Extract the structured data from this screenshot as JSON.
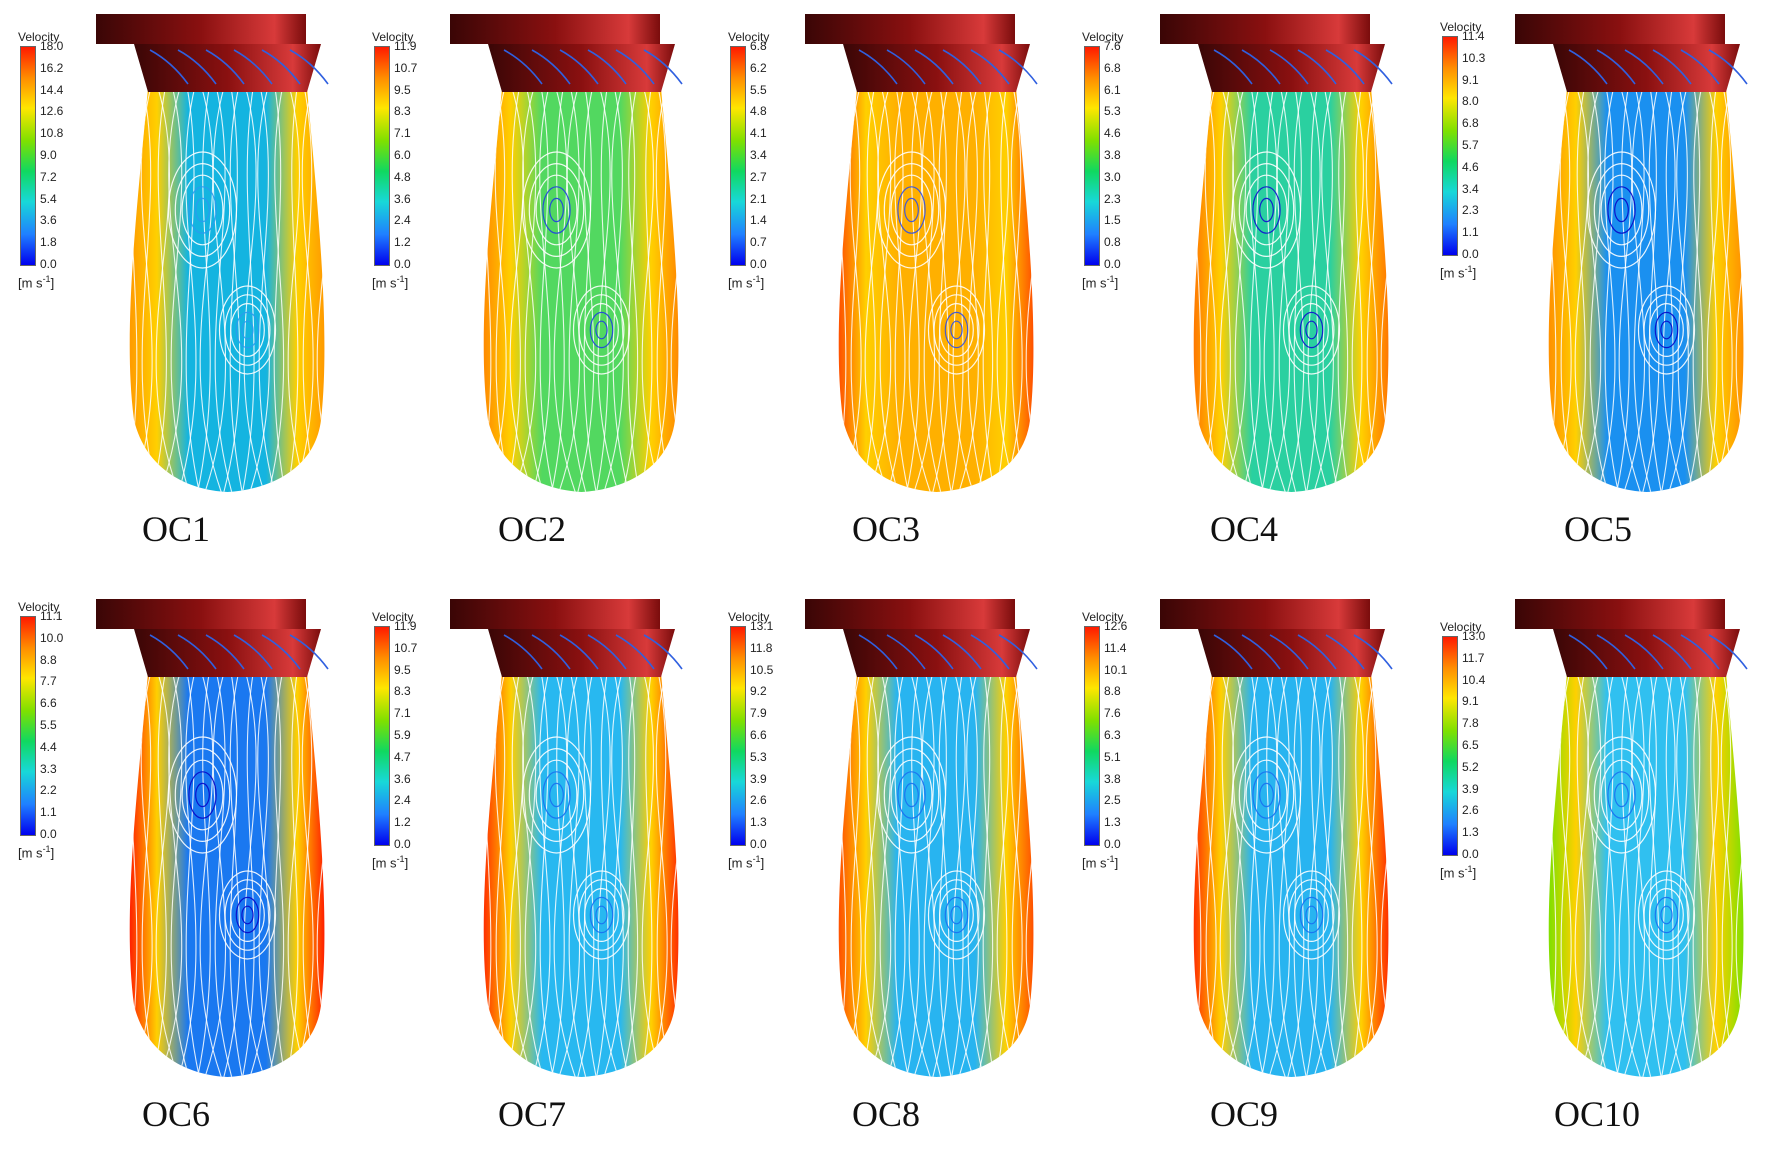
{
  "legend_title": "Velocity",
  "unit_prefix": "[m s",
  "unit_exp": "-1",
  "unit_suffix": "]",
  "panels": [
    {
      "caption": "OC1",
      "ticks": [
        "18.0",
        "16.2",
        "14.4",
        "12.6",
        "10.8",
        "9.0",
        "7.2",
        "5.4",
        "3.6",
        "1.8",
        "0.0"
      ],
      "core": "#14b4e0",
      "jet": "#ff9a00",
      "vortex": "#2a9af0"
    },
    {
      "caption": "OC2",
      "ticks": [
        "11.9",
        "10.7",
        "9.5",
        "8.3",
        "7.1",
        "6.0",
        "4.8",
        "3.6",
        "2.4",
        "1.2",
        "0.0"
      ],
      "core": "#52d860",
      "jet": "#ff8a00",
      "vortex": "#2040e0"
    },
    {
      "caption": "OC3",
      "ticks": [
        "6.8",
        "6.2",
        "5.5",
        "4.8",
        "4.1",
        "3.4",
        "2.7",
        "2.1",
        "1.4",
        "0.7",
        "0.0"
      ],
      "core": "#ffb000",
      "jet": "#ff5000",
      "vortex": "#3050e8"
    },
    {
      "caption": "OC4",
      "ticks": [
        "7.6",
        "6.8",
        "6.1",
        "5.3",
        "4.6",
        "3.8",
        "3.0",
        "2.3",
        "1.5",
        "0.8",
        "0.0"
      ],
      "core": "#2ad0a0",
      "jet": "#ff7800",
      "vortex": "#1010d0"
    },
    {
      "caption": "OC5",
      "ticks": [
        "11.4",
        "10.3",
        "9.1",
        "8.0",
        "6.8",
        "5.7",
        "4.6",
        "3.4",
        "2.3",
        "1.1",
        "0.0"
      ],
      "core": "#1a90f0",
      "jet": "#ff9000",
      "vortex": "#0808c8"
    },
    {
      "caption": "OC6",
      "ticks": [
        "11.1",
        "10.0",
        "8.8",
        "7.7",
        "6.6",
        "5.5",
        "4.4",
        "3.3",
        "2.2",
        "1.1",
        "0.0"
      ],
      "core": "#1a78f0",
      "jet": "#ff2000",
      "vortex": "#0808c8"
    },
    {
      "caption": "OC7",
      "ticks": [
        "11.9",
        "10.7",
        "9.5",
        "8.3",
        "7.1",
        "5.9",
        "4.7",
        "3.6",
        "2.4",
        "1.2",
        "0.0"
      ],
      "core": "#28b8f0",
      "jet": "#ff3000",
      "vortex": "#1a70f0"
    },
    {
      "caption": "OC8",
      "ticks": [
        "13.1",
        "11.8",
        "10.5",
        "9.2",
        "7.9",
        "6.6",
        "5.3",
        "3.9",
        "2.6",
        "1.3",
        "0.0"
      ],
      "core": "#28b4f0",
      "jet": "#ff5000",
      "vortex": "#1a70f0"
    },
    {
      "caption": "OC9",
      "ticks": [
        "12.6",
        "11.4",
        "10.1",
        "8.8",
        "7.6",
        "6.3",
        "5.1",
        "3.8",
        "2.5",
        "1.3",
        "0.0"
      ],
      "core": "#28b4f0",
      "jet": "#ff3000",
      "vortex": "#1a70f0"
    },
    {
      "caption": "OC10",
      "ticks": [
        "13.0",
        "11.7",
        "10.4",
        "9.1",
        "7.8",
        "6.5",
        "5.2",
        "3.9",
        "2.6",
        "1.3",
        "0.0"
      ],
      "core": "#30c0f0",
      "jet": "#7fe000",
      "vortex": "#1a70f0"
    }
  ]
}
